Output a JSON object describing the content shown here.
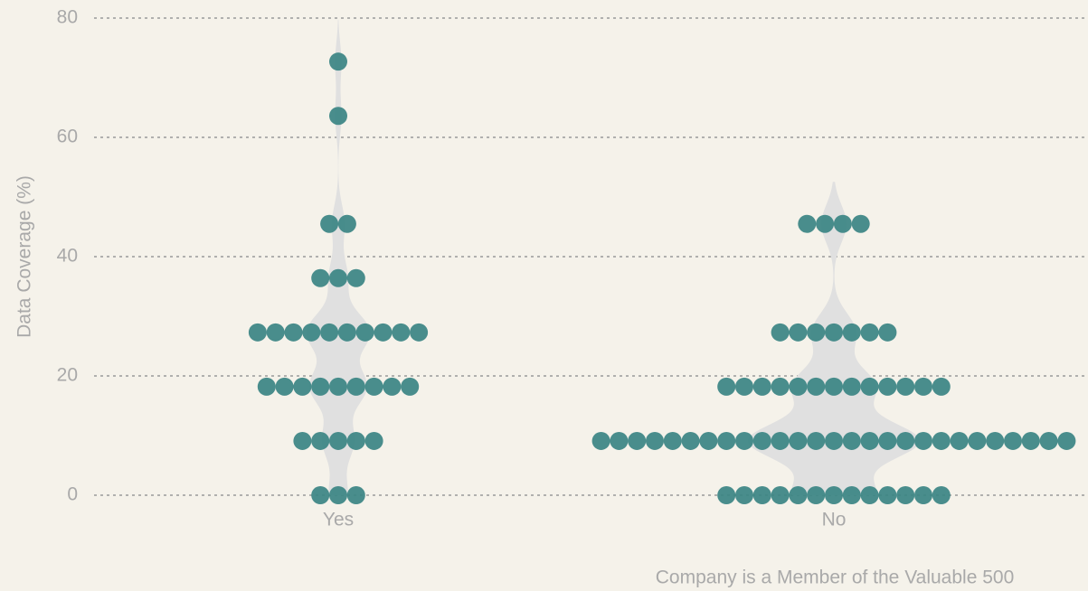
{
  "chart_data": {
    "type": "violin",
    "x_label": "Company is a Member of the Valuable 500",
    "y_label": "Data Coverage (%)",
    "categories": [
      "Yes",
      "No"
    ],
    "values": [
      [
        0,
        0,
        0,
        9.1,
        9.1,
        9.1,
        9.1,
        9.1,
        18.2,
        18.2,
        18.2,
        18.2,
        18.2,
        18.2,
        18.2,
        18.2,
        18.2,
        27.3,
        27.3,
        27.3,
        27.3,
        27.3,
        27.3,
        27.3,
        27.3,
        27.3,
        27.3,
        36.4,
        36.4,
        36.4,
        45.5,
        45.5,
        63.6,
        72.7
      ],
      [
        0,
        0,
        0,
        0,
        0,
        0,
        0,
        0,
        0,
        0,
        0,
        0,
        0,
        9.1,
        9.1,
        9.1,
        9.1,
        9.1,
        9.1,
        9.1,
        9.1,
        9.1,
        9.1,
        9.1,
        9.1,
        9.1,
        9.1,
        9.1,
        9.1,
        9.1,
        9.1,
        9.1,
        9.1,
        9.1,
        9.1,
        9.1,
        9.1,
        9.1,
        9.1,
        9.1,
        18.2,
        18.2,
        18.2,
        18.2,
        18.2,
        18.2,
        18.2,
        18.2,
        18.2,
        18.2,
        18.2,
        18.2,
        18.2,
        27.3,
        27.3,
        27.3,
        27.3,
        27.3,
        27.3,
        27.3,
        45.5,
        45.5,
        45.5,
        45.5
      ]
    ],
    "color": "#3a8483",
    "violin_color": "#e0e0e0",
    "ylim": [
      0,
      80
    ],
    "yticks": [
      0,
      20,
      40,
      60,
      80
    ],
    "grid": true
  }
}
